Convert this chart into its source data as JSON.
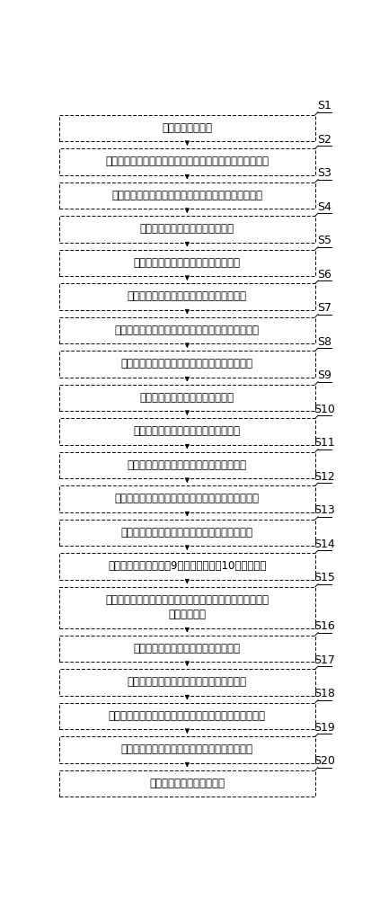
{
  "steps": [
    {
      "label": "S1",
      "text": "发送连续波源信号",
      "multiline": false
    },
    {
      "label": "S2",
      "text": "将连续波源信号分为第一连续波子信号和第二连续波子信号",
      "multiline": false
    },
    {
      "label": "S3",
      "text": "分别调整第一连续波子信号和第二连续波子信号的功率",
      "multiline": false
    },
    {
      "label": "S4",
      "text": "发送第一本振信号和第二本振信号",
      "multiline": false
    },
    {
      "label": "S5",
      "text": "混频得到第一中频信号和第二中频信号",
      "multiline": false
    },
    {
      "label": "S6",
      "text": "采样得到第一组数据样本和第二组数据样本",
      "multiline": false
    },
    {
      "label": "S7",
      "text": "希尔伯特变换得到第三组数据样本和第四组数据样本",
      "multiline": false
    },
    {
      "label": "S8",
      "text": "计算得到第一中频信号与第二中频信号的相位差",
      "multiline": false
    },
    {
      "label": "S9",
      "text": "发送第三本振信号和第四本振信号",
      "multiline": false
    },
    {
      "label": "S10",
      "text": "混频得到第三中频信号和第四中频信号",
      "multiline": false
    },
    {
      "label": "S11",
      "text": "采样得到第五组数据样本和第六组数据样本",
      "multiline": false
    },
    {
      "label": "S12",
      "text": "希尔伯特变换得到第七组数据样本和第八组数据样本",
      "multiline": false
    },
    {
      "label": "S13",
      "text": "计算得到第三中频信号与第四中频信号的相位差",
      "multiline": false
    },
    {
      "label": "S14",
      "text": "计算得到第一本振通道9与第二本振通道10的时延差值",
      "multiline": false
    },
    {
      "label": "S15",
      "text": "输入第一待测信号和第二待测信号，并发送第五本振信号和\n第六本振信号",
      "multiline": true
    },
    {
      "label": "S16",
      "text": "混频得到第五中频信号和第六中频信号",
      "multiline": false
    },
    {
      "label": "S17",
      "text": "采样得到第九组数据样本和第十组数据样本",
      "multiline": false
    },
    {
      "label": "S18",
      "text": "希尔伯特变换得到第十一组数据样本和第十二组数据样本",
      "multiline": false
    },
    {
      "label": "S19",
      "text": "计算得到第五本振信号与第六本振信号的相位差",
      "multiline": false
    },
    {
      "label": "S20",
      "text": "计算得到第十三组数据样本",
      "multiline": false
    }
  ],
  "box_fill": "#ffffff",
  "box_edge": "#000000",
  "bg_color": "#ffffff",
  "text_color": "#000000",
  "arrow_color": "#000000",
  "label_color": "#000000",
  "font_size": 8.5,
  "label_font_size": 9.0
}
